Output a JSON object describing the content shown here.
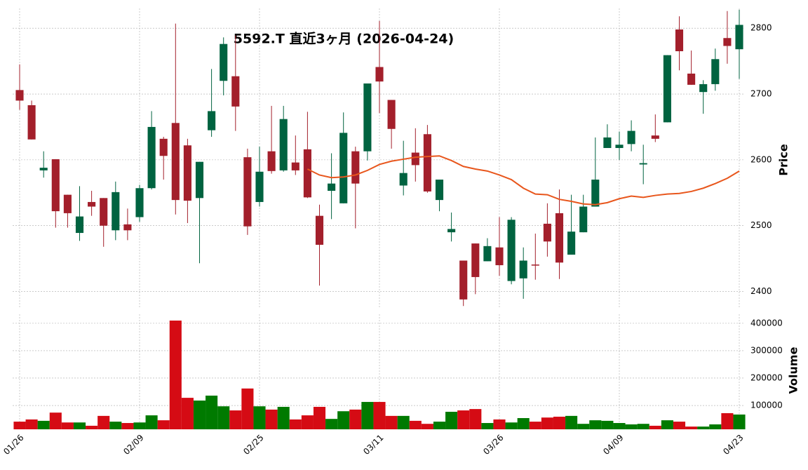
{
  "chart_data": [
    {
      "type": "candlestick",
      "title": "5592.T  直近3ヶ月  (2026-04-24)",
      "ylabel": "Price",
      "open": [
        2706,
        2683,
        2584,
        2601,
        2547,
        2489,
        2536,
        2542,
        2493,
        2502,
        2513,
        2557,
        2632,
        2656,
        2622,
        2542,
        2645,
        2720,
        2727,
        2604,
        2536,
        2613,
        2584,
        2596,
        2616,
        2515,
        2553,
        2534,
        2613,
        2613,
        2741,
        2691,
        2561,
        2611,
        2639,
        2539,
        2490,
        2447,
        2473,
        2446,
        2467,
        2416,
        2420,
        2441,
        2503,
        2519,
        2456,
        2490,
        2529,
        2618,
        2618,
        2624,
        2593,
        2637,
        2657,
        2798,
        2731,
        2703,
        2715,
        2785,
        2768
      ],
      "high": [
        2745,
        2690,
        2613,
        2601,
        2547,
        2560,
        2553,
        2542,
        2567,
        2526,
        2562,
        2674,
        2635,
        2807,
        2632,
        2597,
        2738,
        2786,
        2789,
        2617,
        2620,
        2682,
        2682,
        2637,
        2673,
        2532,
        2610,
        2672,
        2620,
        2716,
        2811,
        2691,
        2629,
        2648,
        2653,
        2570,
        2520,
        2447,
        2473,
        2481,
        2513,
        2513,
        2467,
        2488,
        2534,
        2555,
        2547,
        2547,
        2634,
        2654,
        2643,
        2660,
        2623,
        2669,
        2759,
        2818,
        2766,
        2721,
        2769,
        2826,
        2828
      ],
      "low": [
        2676,
        2631,
        2573,
        2497,
        2497,
        2477,
        2515,
        2468,
        2478,
        2478,
        2506,
        2555,
        2570,
        2517,
        2504,
        2443,
        2635,
        2698,
        2644,
        2486,
        2529,
        2579,
        2582,
        2577,
        2542,
        2409,
        2510,
        2534,
        2496,
        2599,
        2671,
        2617,
        2546,
        2567,
        2550,
        2522,
        2476,
        2378,
        2396,
        2446,
        2424,
        2411,
        2389,
        2418,
        2453,
        2419,
        2456,
        2490,
        2529,
        2618,
        2600,
        2613,
        2563,
        2627,
        2657,
        2736,
        2714,
        2670,
        2705,
        2746,
        2723
      ],
      "close": [
        2690,
        2631,
        2588,
        2522,
        2519,
        2514,
        2529,
        2500,
        2551,
        2493,
        2557,
        2650,
        2606,
        2539,
        2538,
        2597,
        2674,
        2776,
        2681,
        2499,
        2582,
        2583,
        2662,
        2584,
        2543,
        2471,
        2564,
        2641,
        2564,
        2716,
        2719,
        2647,
        2580,
        2592,
        2552,
        2570,
        2495,
        2388,
        2422,
        2469,
        2440,
        2509,
        2447,
        2440,
        2476,
        2444,
        2491,
        2529,
        2570,
        2634,
        2623,
        2644,
        2595,
        2632,
        2759,
        2765,
        2714,
        2715,
        2753,
        2773,
        2805
      ],
      "ma": {
        "color": "#e8561c",
        "values": [
          null,
          null,
          null,
          null,
          null,
          null,
          null,
          null,
          null,
          null,
          null,
          null,
          null,
          null,
          null,
          null,
          null,
          null,
          null,
          null,
          null,
          null,
          null,
          null,
          2586,
          2577,
          2573,
          2574,
          2577,
          2584,
          2593,
          2598,
          2601,
          2604,
          2605,
          2606,
          2599,
          2590,
          2586,
          2583,
          2577,
          2570,
          2557,
          2548,
          2547,
          2540,
          2537,
          2533,
          2532,
          2535,
          2541,
          2545,
          2543,
          2546,
          2548,
          2549,
          2552,
          2557,
          2564,
          2572,
          2583
        ]
      },
      "up_color": "#006340",
      "down_color": "#a31f2b",
      "ylim": [
        2374,
        2830
      ],
      "yticks": [
        2400,
        2500,
        2600,
        2700,
        2800
      ],
      "grid": true
    },
    {
      "type": "bar",
      "ylabel": "Volume",
      "categories": [
        "01/26",
        null,
        null,
        null,
        null,
        null,
        null,
        null,
        null,
        null,
        "02/09",
        null,
        null,
        null,
        null,
        null,
        null,
        null,
        null,
        null,
        "02/25",
        null,
        null,
        null,
        null,
        null,
        null,
        null,
        null,
        null,
        "03/11",
        null,
        null,
        null,
        null,
        null,
        null,
        null,
        null,
        null,
        "03/26",
        null,
        null,
        null,
        null,
        null,
        null,
        null,
        null,
        null,
        "04/09",
        null,
        null,
        null,
        null,
        null,
        null,
        null,
        null,
        null,
        "04/23"
      ],
      "values": [
        41000,
        49000,
        44000,
        74000,
        38000,
        38000,
        26000,
        62000,
        41000,
        36000,
        38000,
        64000,
        46000,
        410000,
        128000,
        118000,
        136000,
        97000,
        82000,
        162000,
        97000,
        85000,
        95000,
        49000,
        64000,
        95000,
        51000,
        79000,
        85000,
        113000,
        113000,
        62000,
        62000,
        44000,
        33000,
        41000,
        77000,
        82000,
        87000,
        36000,
        49000,
        38000,
        54000,
        41000,
        56000,
        59000,
        62000,
        33000,
        46000,
        44000,
        36000,
        31000,
        33000,
        26000,
        46000,
        41000,
        23000,
        23000,
        31000,
        72000,
        67000
      ],
      "up_color": "#007a00",
      "down_color": "#d50b14",
      "ylim": [
        13000,
        433000
      ],
      "yticks": [
        100000,
        200000,
        300000,
        400000
      ],
      "grid": true
    }
  ]
}
